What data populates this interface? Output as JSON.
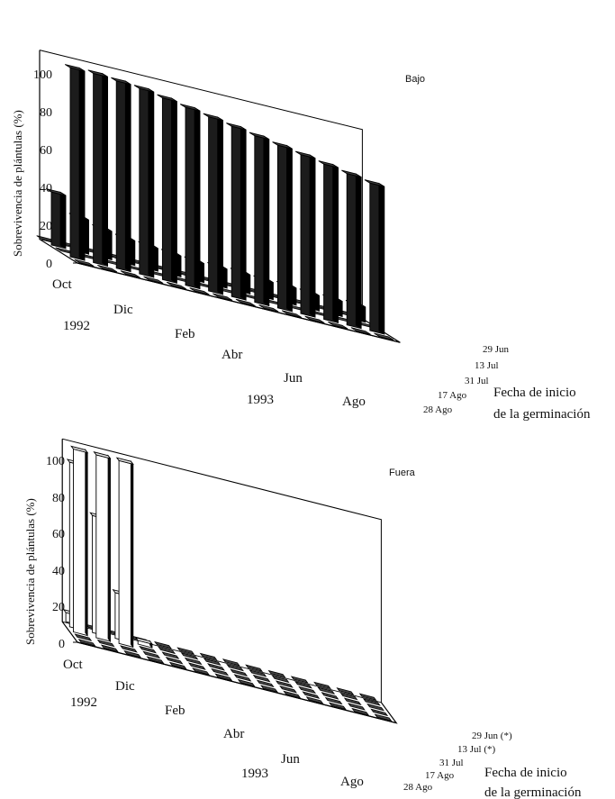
{
  "chart_data": [
    {
      "type": "bar",
      "title": "Bajo",
      "ylabel": "Sobrevivencia de plántulas (%)",
      "zlabel": [
        "Fecha de inicio",
        "de la germinación"
      ],
      "ylim": [
        0,
        100
      ],
      "yticks": [
        "0",
        "20",
        "40",
        "60",
        "80",
        "100"
      ],
      "month_labels": [
        "Oct",
        "Dic",
        "Feb",
        "Abr",
        "Jun",
        "Ago"
      ],
      "year_labels": [
        "1992",
        "1993"
      ],
      "series": [
        {
          "name": "29 Jun",
          "values": [
            0,
            0,
            0,
            0,
            0,
            0,
            0,
            0,
            0,
            0,
            0,
            0,
            0,
            0
          ]
        },
        {
          "name": "13 Jul",
          "values": [
            100,
            100,
            99,
            98,
            96,
            94,
            92,
            90,
            88,
            86,
            84,
            82,
            80,
            78
          ]
        },
        {
          "name": "31 Jul",
          "values": [
            0,
            0,
            0,
            0,
            0,
            0,
            0,
            0,
            0,
            0,
            0,
            0,
            0,
            0
          ]
        },
        {
          "name": "17 Ago",
          "values": [
            28,
            18,
            15,
            13,
            12,
            11,
            10,
            10,
            10,
            9,
            9,
            8,
            8,
            8
          ]
        },
        {
          "name": "28 Ago",
          "values": [
            0,
            0,
            0,
            0,
            0,
            0,
            0,
            0,
            0,
            0,
            0,
            0,
            0,
            0
          ]
        }
      ]
    },
    {
      "type": "bar",
      "title": "Fuera",
      "ylabel": "Sobrevivencia de plántulas (%)",
      "zlabel": [
        "Fecha de inicio",
        "de la germinación"
      ],
      "ylim": [
        0,
        100
      ],
      "yticks": [
        "0",
        "20",
        "40",
        "60",
        "80",
        "100"
      ],
      "month_labels": [
        "Oct",
        "Dic",
        "Feb",
        "Abr",
        "Jun",
        "Ago"
      ],
      "year_labels": [
        "1992",
        "1993"
      ],
      "series": [
        {
          "name": "29 Jun (*)",
          "values": [
            0,
            0,
            0,
            0,
            0,
            0,
            0,
            0,
            0,
            0,
            0,
            0,
            0,
            0
          ]
        },
        {
          "name": "13 Jul (*)",
          "values": [
            0,
            0,
            0,
            0,
            0,
            0,
            0,
            0,
            0,
            0,
            0,
            0,
            0,
            0
          ]
        },
        {
          "name": "31 Jul",
          "values": [
            100,
            100,
            100,
            0,
            0,
            0,
            0,
            0,
            0,
            0,
            0,
            0,
            0,
            0
          ]
        },
        {
          "name": "17 Ago",
          "values": [
            90,
            64,
            25,
            2,
            0,
            0,
            0,
            0,
            0,
            0,
            0,
            0,
            0,
            0
          ]
        },
        {
          "name": "28 Ago",
          "values": [
            5,
            0,
            0,
            0,
            0,
            0,
            0,
            0,
            0,
            0,
            0,
            0,
            0,
            0
          ]
        }
      ]
    }
  ]
}
